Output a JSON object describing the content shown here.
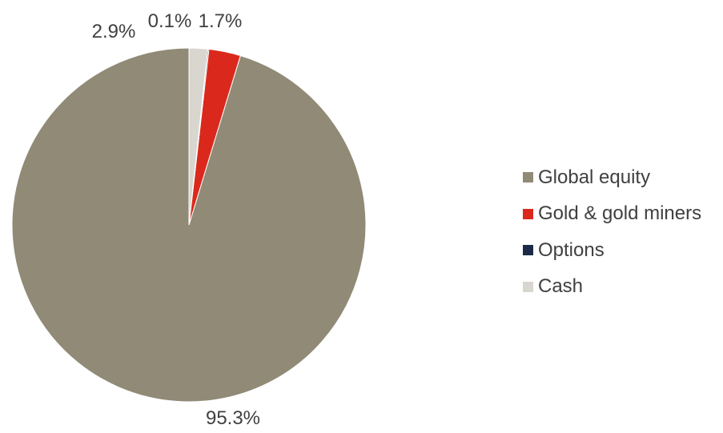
{
  "chart_data": {
    "type": "pie",
    "title": "",
    "slices": [
      {
        "label": "Global equity",
        "value": 95.3,
        "display": "95.3%",
        "color": "#908A76"
      },
      {
        "label": "Gold & gold miners",
        "value": 2.9,
        "display": "2.9%",
        "color": "#DA291C"
      },
      {
        "label": "Options",
        "value": 0.1,
        "display": "0.1%",
        "color": "#1B2A47"
      },
      {
        "label": "Cash",
        "value": 1.7,
        "display": "1.7%",
        "color": "#D9D6D0"
      }
    ],
    "start_angle": "12 o'clock",
    "direction": "counter-clockwise",
    "legend_position": "right"
  }
}
